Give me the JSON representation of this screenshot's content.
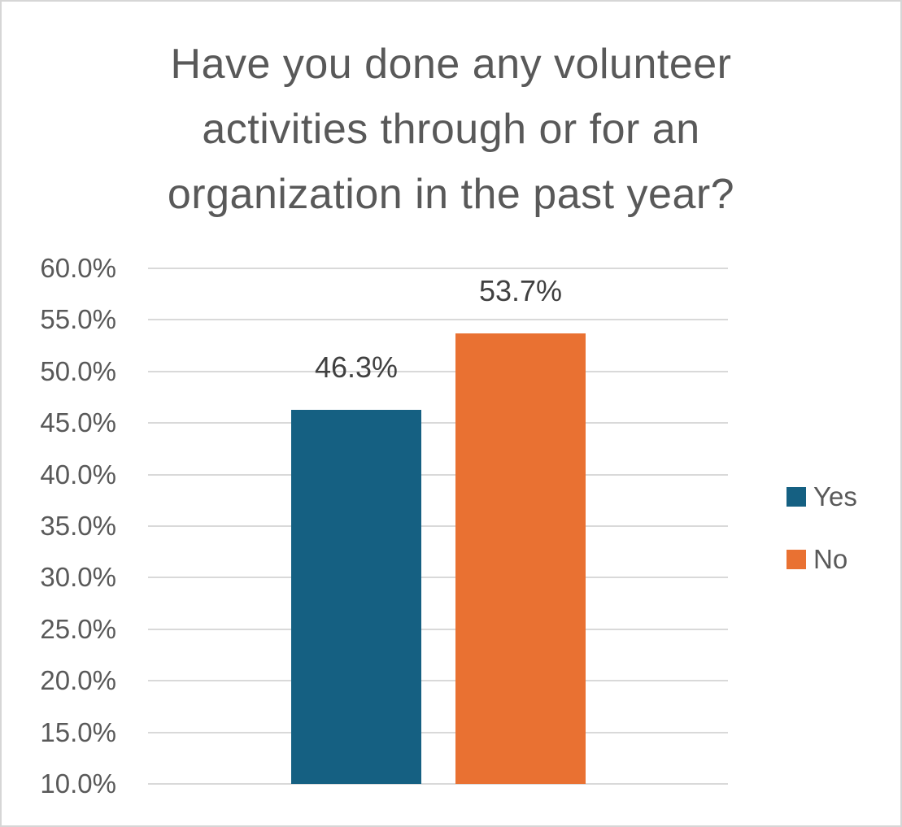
{
  "chart_data": {
    "type": "bar",
    "title": "Have you done any volunteer activities through or for an organization in the past year?",
    "title_lines": [
      "Have you done any volunteer",
      "activities through or for an",
      "organization in the past year?"
    ],
    "categories": [
      ""
    ],
    "series": [
      {
        "name": "Yes",
        "color": "#156082",
        "values": [
          46.3
        ],
        "data_label": "46.3%"
      },
      {
        "name": "No",
        "color": "#E97132",
        "values": [
          53.7
        ],
        "data_label": "53.7%"
      }
    ],
    "ylim": [
      10,
      60
    ],
    "ytick_step": 5,
    "yticks": [
      {
        "v": 60,
        "label": "60.0%"
      },
      {
        "v": 55,
        "label": "55.0%"
      },
      {
        "v": 50,
        "label": "50.0%"
      },
      {
        "v": 45,
        "label": "45.0%"
      },
      {
        "v": 40,
        "label": "40.0%"
      },
      {
        "v": 35,
        "label": "35.0%"
      },
      {
        "v": 30,
        "label": "30.0%"
      },
      {
        "v": 25,
        "label": "25.0%"
      },
      {
        "v": 20,
        "label": "20.0%"
      },
      {
        "v": 15,
        "label": "15.0%"
      },
      {
        "v": 10,
        "label": "10.0%"
      }
    ],
    "grid": true,
    "legend_position": "right",
    "legend": [
      {
        "label": "Yes",
        "color": "#156082"
      },
      {
        "label": "No",
        "color": "#E97132"
      }
    ]
  },
  "colors": {
    "title_text": "#595959",
    "axis_text": "#595959",
    "data_label_text": "#404040",
    "gridline": "#D9D9D9",
    "frame_border": "#D6D6D6",
    "background": "#FFFFFF",
    "series_yes": "#156082",
    "series_no": "#E97132"
  }
}
